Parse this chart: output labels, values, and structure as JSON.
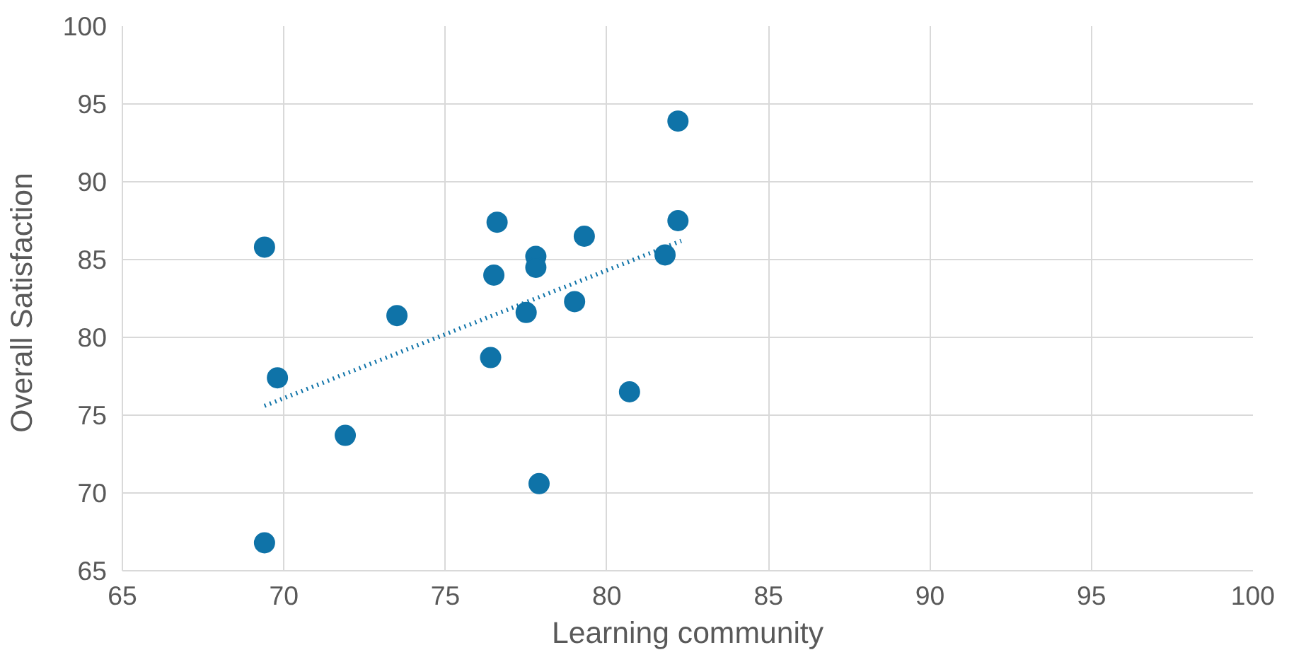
{
  "chart_data": {
    "type": "scatter",
    "xlabel": "Learning community",
    "ylabel": "Overall  Satisfaction",
    "xlim": [
      65,
      100
    ],
    "ylim": [
      65,
      100
    ],
    "xticks": [
      65,
      70,
      75,
      80,
      85,
      90,
      95,
      100
    ],
    "yticks": [
      65,
      70,
      75,
      80,
      85,
      90,
      95,
      100
    ],
    "grid": true,
    "marker": "circle",
    "series": [
      {
        "color": "#0f73a8",
        "x": [
          69.4,
          69.8,
          69.4,
          71.9,
          73.5,
          76.4,
          76.5,
          76.6,
          77.5,
          77.8,
          77.8,
          77.9,
          79.0,
          79.3,
          80.7,
          81.8,
          82.2,
          82.2
        ],
        "values": [
          85.8,
          77.4,
          66.8,
          73.7,
          81.4,
          78.7,
          84.0,
          87.4,
          81.6,
          85.2,
          84.5,
          70.6,
          82.3,
          86.5,
          76.5,
          85.3,
          87.5,
          93.9
        ]
      },
      {
        "type": "line",
        "color": "#0f73a8",
        "line_style": "dotted",
        "marker": "none",
        "x": [
          69.4,
          82.3
        ],
        "values": [
          75.6,
          86.2
        ]
      }
    ]
  }
}
